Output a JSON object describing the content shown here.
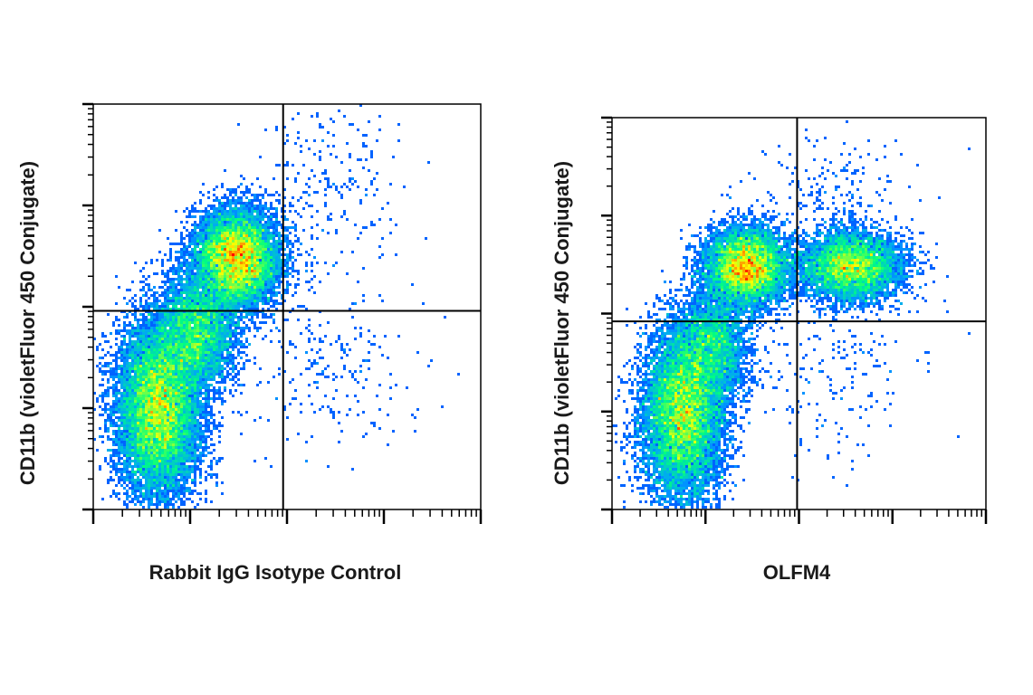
{
  "chart_data": [
    {
      "type": "scatter",
      "subtype": "flow-cytometry-density-dot-plot",
      "xlabel": "Rabbit IgG Isotype Control",
      "ylabel": "CD11b (violetFluor 450 Conjugate)",
      "x_scale": "log",
      "y_scale": "log",
      "grid": false,
      "legend": "none",
      "colormap": [
        "#0000ff",
        "#00a0ff",
        "#00ff80",
        "#ffff00",
        "#ff0000"
      ],
      "quadrant_gate": {
        "x": 0.49,
        "y": 0.49
      },
      "populations": [
        {
          "name": "",
          "center": [
            0.17,
            0.25
          ],
          "spread": [
            0.055,
            0.11
          ],
          "weight": 1.0
        },
        {
          "name": "",
          "center": [
            0.37,
            0.62
          ],
          "spread": [
            0.055,
            0.06
          ],
          "weight": 0.75
        },
        {
          "name": "",
          "center": [
            0.27,
            0.44
          ],
          "spread": [
            0.05,
            0.07
          ],
          "weight": 0.35
        },
        {
          "name": "",
          "center": [
            0.6,
            0.35
          ],
          "spread": [
            0.12,
            0.12
          ],
          "weight": 0.02
        },
        {
          "name": "",
          "center": [
            0.6,
            0.8
          ],
          "spread": [
            0.1,
            0.12
          ],
          "weight": 0.02
        }
      ]
    },
    {
      "type": "scatter",
      "subtype": "flow-cytometry-density-dot-plot",
      "xlabel": "OLFM4",
      "ylabel": "CD11b (violetFluor 450 Conjugate)",
      "x_scale": "log",
      "y_scale": "log",
      "grid": false,
      "legend": "none",
      "colormap": [
        "#0000ff",
        "#00a0ff",
        "#00ff80",
        "#ffff00",
        "#ff0000"
      ],
      "quadrant_gate": {
        "x": 0.495,
        "y": 0.48
      },
      "populations": [
        {
          "name": "",
          "center": [
            0.19,
            0.24
          ],
          "spread": [
            0.055,
            0.11
          ],
          "weight": 1.0
        },
        {
          "name": "",
          "center": [
            0.36,
            0.62
          ],
          "spread": [
            0.055,
            0.05
          ],
          "weight": 0.7
        },
        {
          "name": "",
          "center": [
            0.64,
            0.62
          ],
          "spread": [
            0.07,
            0.045
          ],
          "weight": 0.55
        },
        {
          "name": "",
          "center": [
            0.27,
            0.42
          ],
          "spread": [
            0.05,
            0.07
          ],
          "weight": 0.3
        },
        {
          "name": "",
          "center": [
            0.6,
            0.35
          ],
          "spread": [
            0.12,
            0.12
          ],
          "weight": 0.02
        },
        {
          "name": "",
          "center": [
            0.6,
            0.82
          ],
          "spread": [
            0.1,
            0.1
          ],
          "weight": 0.02
        }
      ]
    }
  ]
}
